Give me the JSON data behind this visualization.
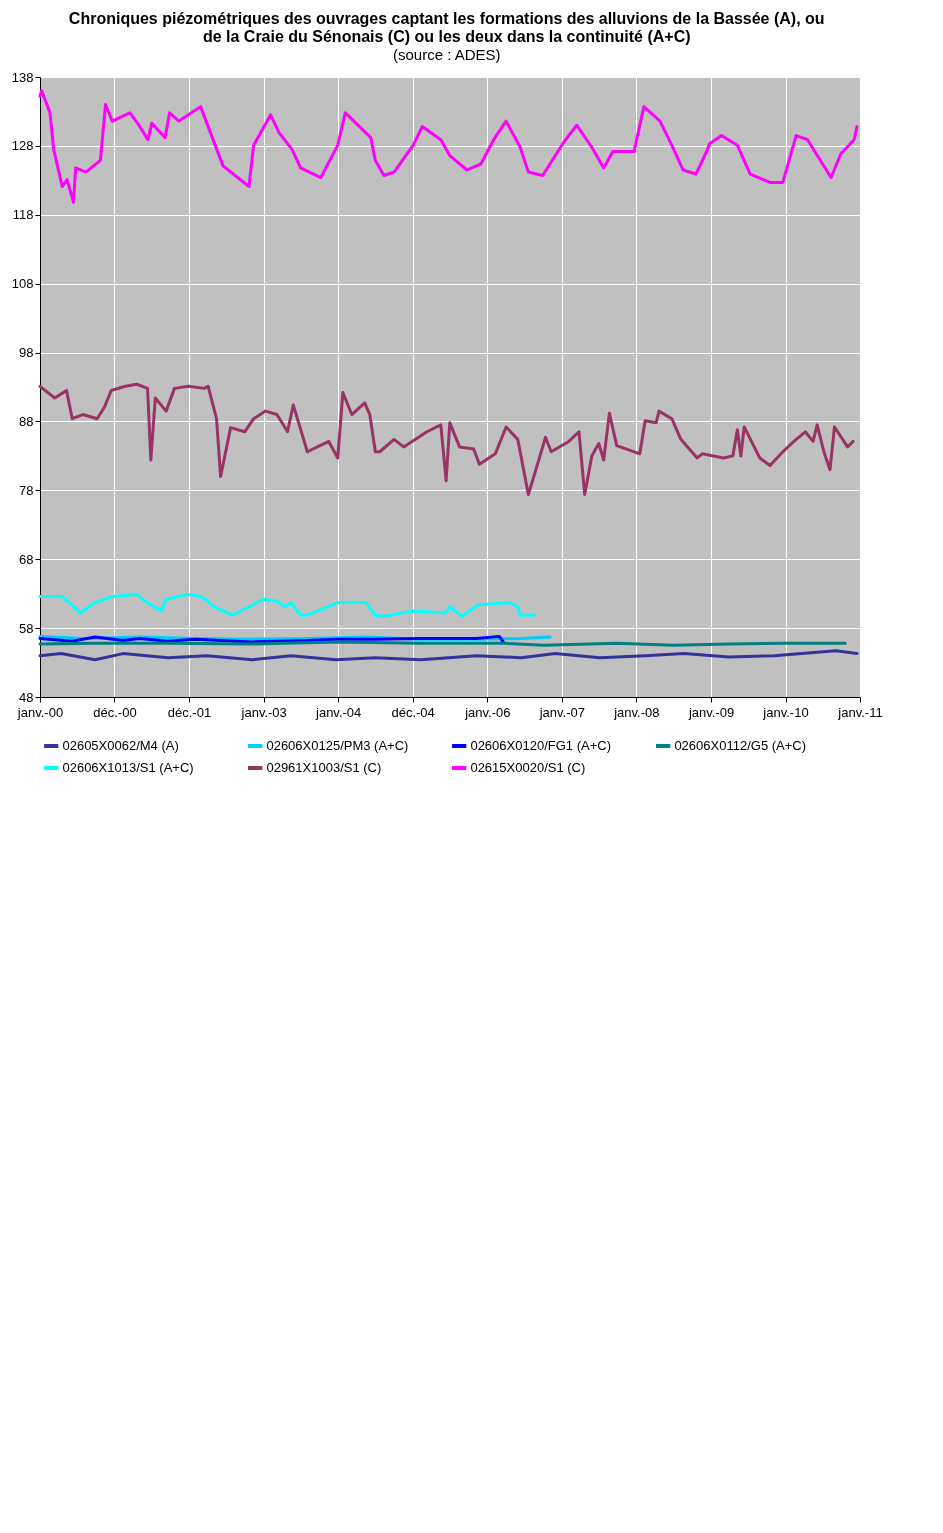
{
  "chart_data": {
    "type": "line",
    "title": "Chroniques piézométriques des ouvrages captant les formations des alluvions de la Bassée (A), ou\nde la Craie du Sénonais (C) ou les deux dans la continuité (A+C)",
    "subtitle": "(source : ADES)",
    "xlim": [
      "2000-01-01",
      "2011-01-01"
    ],
    "xticks": [
      {
        "value": "2000-01-01",
        "label": "janv.-00"
      },
      {
        "value": "2000-12-31",
        "label": "déc.-00"
      },
      {
        "value": "2001-12-31",
        "label": "déc.-01"
      },
      {
        "value": "2003-01-01",
        "label": "janv.-03"
      },
      {
        "value": "2004-01-01",
        "label": "janv.-04"
      },
      {
        "value": "2004-12-31",
        "label": "déc.-04"
      },
      {
        "value": "2006-01-01",
        "label": "janv.-06"
      },
      {
        "value": "2007-01-01",
        "label": "janv.-07"
      },
      {
        "value": "2008-01-01",
        "label": "janv.-08"
      },
      {
        "value": "2009-01-01",
        "label": "janv.-09"
      },
      {
        "value": "2010-01-01",
        "label": "janv.-10"
      },
      {
        "value": "2011-01-01",
        "label": "janv.-11"
      }
    ],
    "ylim": [
      48,
      138
    ],
    "yticks": [
      48,
      58,
      68,
      78,
      88,
      98,
      108,
      118,
      128,
      138
    ],
    "grid": true,
    "legend": "bottom",
    "series": [
      {
        "name": "02605X0062/M4 (A)",
        "color": "#333399",
        "x": [
          "2000-01-01",
          "2000-04-14",
          "2000-09-26",
          "2001-02-11",
          "2001-09-19",
          "2002-03-29",
          "2002-11-05",
          "2003-05-15",
          "2003-12-22",
          "2004-07-01",
          "2005-02-08",
          "2005-11-09",
          "2006-06-16",
          "2006-11-29",
          "2007-07-06",
          "2008-02-13",
          "2008-08-22",
          "2009-03-30",
          "2009-11-06",
          "2010-09-04",
          "2010-12-17"
        ],
        "values": [
          54.0,
          54.3,
          53.4,
          54.3,
          53.7,
          54.0,
          53.4,
          54.0,
          53.4,
          53.7,
          53.4,
          54.0,
          53.7,
          54.3,
          53.7,
          54.0,
          54.3,
          53.8,
          54.0,
          54.7,
          54.3
        ]
      },
      {
        "name": "02606X1013/S1 (A+C)",
        "color": "#00ffff",
        "x": [
          "2000-01-01",
          "2000-04-19",
          "2000-07-18",
          "2000-09-26",
          "2000-12-26",
          "2001-04-19",
          "2001-05-30",
          "2001-08-18",
          "2001-09-10",
          "2001-12-29",
          "2002-03-01",
          "2002-05-04",
          "2002-08-03",
          "2002-10-21",
          "2002-12-30",
          "2003-03-07",
          "2003-04-18",
          "2003-05-15",
          "2003-07-01",
          "2003-08-03",
          "2003-12-30",
          "2004-05-16",
          "2004-07-01",
          "2004-08-07",
          "2005-01-03",
          "2005-06-10",
          "2005-07-01",
          "2005-08-29",
          "2005-11-17",
          "2006-04-17",
          "2006-05-30",
          "2006-06-11",
          "2006-08-19"
        ],
        "values": [
          62.6,
          62.6,
          60.2,
          61.7,
          62.6,
          62.9,
          61.9,
          60.5,
          62.2,
          62.9,
          62.6,
          61.1,
          59.9,
          61.1,
          62.2,
          61.9,
          61.1,
          61.7,
          59.9,
          59.9,
          61.7,
          61.7,
          59.9,
          59.7,
          60.5,
          60.2,
          61.1,
          59.7,
          61.4,
          61.7,
          61.1,
          59.9,
          59.9
        ]
      },
      {
        "name": "02606X0125/PM3 (A+C)",
        "color": "#00ccff",
        "x": [
          "2000-01-01",
          "2000-08-02",
          "2001-05-03",
          "2002-01-30",
          "2002-11-05",
          "2003-08-06",
          "2004-05-16",
          "2005-02-08",
          "2005-11-09",
          "2006-06-16",
          "2006-11-04"
        ],
        "values": [
          56.8,
          56.5,
          56.7,
          56.5,
          56.4,
          56.5,
          56.7,
          56.4,
          56.4,
          56.5,
          56.7
        ]
      },
      {
        "name": "02961X1003/S1 (C)",
        "color": "#993366",
        "x": [
          "2000-01-01",
          "2000-03-13",
          "2000-05-10",
          "2000-06-07",
          "2000-07-29",
          "2000-10-07",
          "2000-11-12",
          "2000-12-15",
          "2001-02-22",
          "2001-04-19",
          "2001-06-11",
          "2001-06-27",
          "2001-07-19",
          "2001-09-10",
          "2001-10-21",
          "2001-12-29",
          "2002-03-15",
          "2002-04-04",
          "2002-05-15",
          "2002-06-04",
          "2002-07-23",
          "2002-09-30",
          "2002-11-13",
          "2003-01-10",
          "2003-03-07",
          "2003-04-28",
          "2003-05-26",
          "2003-08-03",
          "2003-11-16",
          "2003-12-30",
          "2004-01-24",
          "2004-03-08",
          "2004-05-10",
          "2004-06-04",
          "2004-07-01",
          "2004-07-23",
          "2004-10-01",
          "2004-11-17",
          "2005-03-11",
          "2005-05-18",
          "2005-06-13",
          "2005-07-01",
          "2005-08-18",
          "2005-10-26",
          "2005-11-23",
          "2006-02-09",
          "2006-04-03",
          "2006-05-30",
          "2006-07-21",
          "2006-09-07",
          "2006-10-13",
          "2006-11-10",
          "2007-02-04",
          "2007-03-26",
          "2007-04-23",
          "2007-05-28",
          "2007-07-01",
          "2007-07-25",
          "2007-08-22",
          "2007-09-27",
          "2008-01-18",
          "2008-02-13",
          "2008-04-07",
          "2008-04-21",
          "2008-06-23",
          "2008-08-06",
          "2008-10-25",
          "2008-11-19",
          "2009-03-03",
          "2009-04-18",
          "2009-05-10",
          "2009-05-27",
          "2009-06-13",
          "2009-07-18",
          "2009-08-28",
          "2009-10-17",
          "2009-12-19",
          "2010-02-11",
          "2010-04-08",
          "2010-05-16",
          "2010-06-05",
          "2010-07-08",
          "2010-08-07",
          "2010-08-29",
          "2010-11-01",
          "2010-11-28"
        ],
        "values": [
          93.1,
          91.4,
          92.5,
          88.4,
          89.0,
          88.4,
          90.1,
          92.5,
          93.1,
          93.4,
          92.8,
          82.4,
          91.4,
          89.5,
          92.8,
          93.1,
          92.8,
          93.1,
          88.4,
          80.0,
          87.1,
          86.5,
          88.4,
          89.5,
          89.0,
          86.5,
          90.4,
          83.6,
          85.1,
          82.7,
          92.2,
          89.0,
          90.7,
          89.0,
          83.6,
          83.6,
          85.4,
          84.3,
          86.5,
          87.5,
          79.4,
          87.8,
          84.3,
          84.0,
          81.8,
          83.3,
          87.2,
          85.4,
          77.4,
          82.1,
          85.7,
          83.6,
          85.1,
          86.5,
          77.4,
          83.0,
          84.8,
          82.4,
          89.2,
          84.5,
          83.3,
          88.1,
          87.8,
          89.5,
          88.4,
          85.4,
          82.7,
          83.3,
          82.7,
          83.0,
          86.8,
          83.0,
          87.2,
          85.1,
          82.7,
          81.6,
          83.6,
          85.1,
          86.5,
          85.1,
          87.5,
          83.6,
          81.0,
          87.2,
          84.3,
          85.1
        ]
      },
      {
        "name": "02606X0120/FG1 (A+C)",
        "color": "#0000ff",
        "x": [
          "2000-01-01",
          "2000-06-07",
          "2000-09-26",
          "2001-02-11",
          "2001-05-03",
          "2001-09-19",
          "2002-01-30",
          "2002-11-05",
          "2003-08-06",
          "2003-12-22",
          "2004-07-01",
          "2005-02-08",
          "2005-11-09",
          "2006-02-28",
          "2006-03-20"
        ],
        "values": [
          56.5,
          56.1,
          56.7,
          56.2,
          56.5,
          56.1,
          56.4,
          56.0,
          56.2,
          56.4,
          56.4,
          56.5,
          56.5,
          56.8,
          56.0
        ]
      },
      {
        "name": "02615X0020/S1 (C)",
        "color": "#ff00ff",
        "x": [
          "2000-01-01",
          "2000-01-09",
          "2000-02-19",
          "2000-03-08",
          "2000-04-19",
          "2000-05-13",
          "2000-06-13",
          "2000-06-24",
          "2000-08-13",
          "2000-10-23",
          "2000-11-17",
          "2000-12-20",
          "2001-03-17",
          "2001-04-30",
          "2001-06-13",
          "2001-07-02",
          "2001-09-05",
          "2001-09-27",
          "2001-11-12",
          "2002-02-26",
          "2002-06-16",
          "2002-10-21",
          "2002-11-13",
          "2003-02-04",
          "2003-03-18",
          "2003-05-20",
          "2003-07-01",
          "2003-10-08",
          "2003-12-30",
          "2004-02-05",
          "2004-06-09",
          "2004-07-01",
          "2004-08-12",
          "2004-10-01",
          "2005-01-03",
          "2005-02-16",
          "2005-05-18",
          "2005-07-01",
          "2005-09-23",
          "2005-12-01",
          "2006-02-01",
          "2006-04-03",
          "2006-06-11",
          "2006-07-21",
          "2006-09-29",
          "2007-01-12",
          "2007-03-15",
          "2007-05-28",
          "2007-07-25",
          "2007-09-08",
          "2007-12-21",
          "2008-02-07",
          "2008-04-26",
          "2008-06-23",
          "2008-08-17",
          "2008-10-19",
          "2008-12-11",
          "2008-12-25",
          "2009-02-21",
          "2009-05-10",
          "2009-07-12",
          "2009-10-17",
          "2009-12-19",
          "2010-02-22",
          "2010-04-19",
          "2010-08-12",
          "2010-09-30",
          "2010-12-03",
          "2010-12-17"
        ],
        "values": [
          135.2,
          136.0,
          132.8,
          127.5,
          122.1,
          123.1,
          119.8,
          124.8,
          124.2,
          125.9,
          134.0,
          131.6,
          132.8,
          131.0,
          128.9,
          131.3,
          129.2,
          132.8,
          131.6,
          133.7,
          125.1,
          122.1,
          128.1,
          132.5,
          129.9,
          127.5,
          124.8,
          123.4,
          128.1,
          132.8,
          129.2,
          125.9,
          123.7,
          124.2,
          128.1,
          130.8,
          128.9,
          126.6,
          124.5,
          125.4,
          128.9,
          131.6,
          127.8,
          124.2,
          123.7,
          128.6,
          131.0,
          127.8,
          124.8,
          127.2,
          127.2,
          133.7,
          131.6,
          128.1,
          124.5,
          123.9,
          127.2,
          128.3,
          129.5,
          128.1,
          123.9,
          122.7,
          122.7,
          129.5,
          128.9,
          123.4,
          126.9,
          128.9,
          130.8
        ]
      },
      {
        "name": "02606X0112/G5 (A+C)",
        "color": "#008080",
        "x": [
          "2000-01-01",
          "2000-09-26",
          "2001-09-19",
          "2002-11-05",
          "2003-12-30",
          "2005-02-08",
          "2006-03-26",
          "2006-10-04",
          "2007-09-27",
          "2008-06-29",
          "2009-03-30",
          "2010-01-01",
          "2010-10-21"
        ],
        "values": [
          55.7,
          55.8,
          55.8,
          55.7,
          56.0,
          55.8,
          55.8,
          55.5,
          55.8,
          55.5,
          55.7,
          55.8,
          55.8
        ]
      }
    ]
  }
}
